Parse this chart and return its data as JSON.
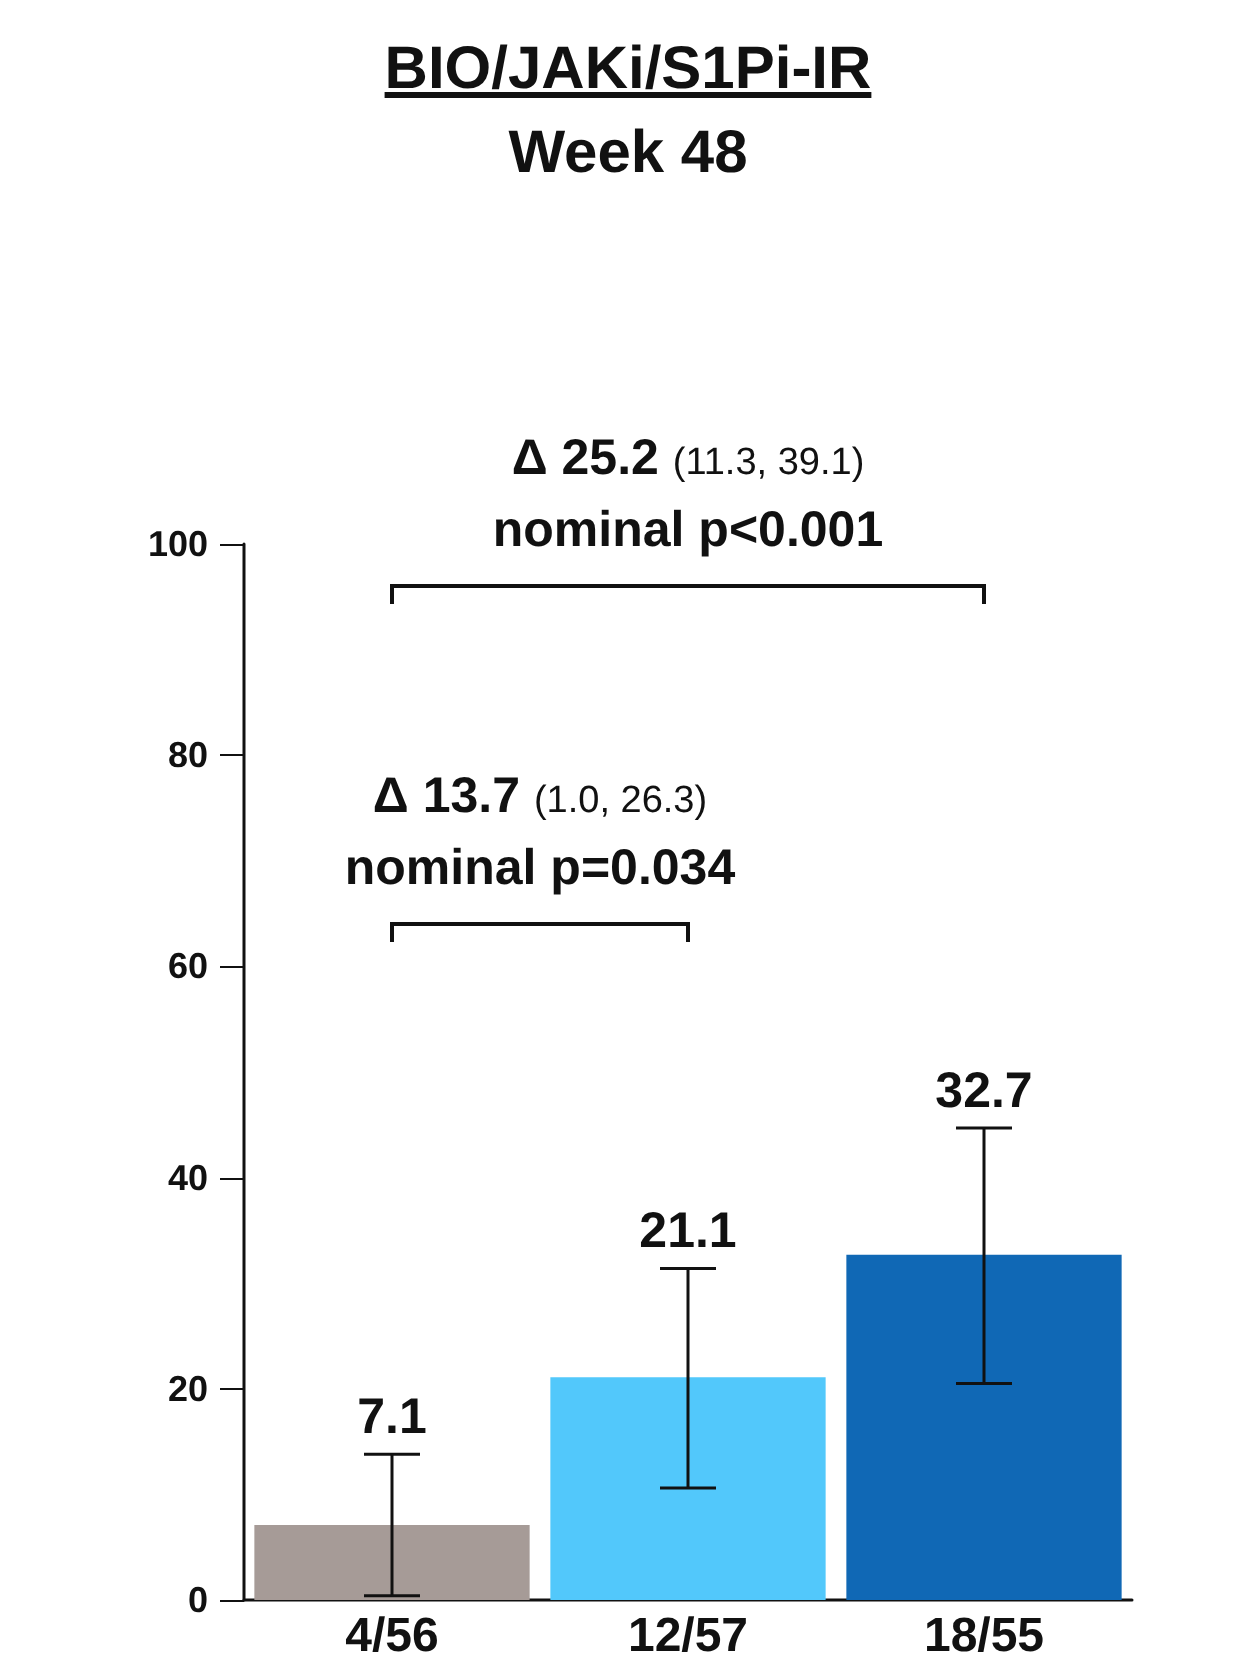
{
  "chart_data": {
    "type": "bar",
    "title": "BIO/JAKi/S1Pi-IR",
    "subtitle": "Week 48",
    "categories": [
      "4/56",
      "12/57",
      "18/55"
    ],
    "values": [
      7.1,
      21.1,
      32.7
    ],
    "colors": [
      "#a69b97",
      "#52c8fb",
      "#1068b5"
    ],
    "errors": [
      [
        0.4,
        13.8
      ],
      [
        10.6,
        31.4
      ],
      [
        20.5,
        44.7
      ]
    ],
    "ylim": [
      0,
      100
    ],
    "yticks": [
      0,
      20,
      40,
      60,
      80,
      100
    ],
    "data_labels": true,
    "grid": false,
    "annotations": [
      "Δ 25.2 (11.3, 39.1)",
      "nominal p<0.001",
      "Δ 13.7 (1.0, 26.3)",
      "nominal p=0.034"
    ]
  }
}
